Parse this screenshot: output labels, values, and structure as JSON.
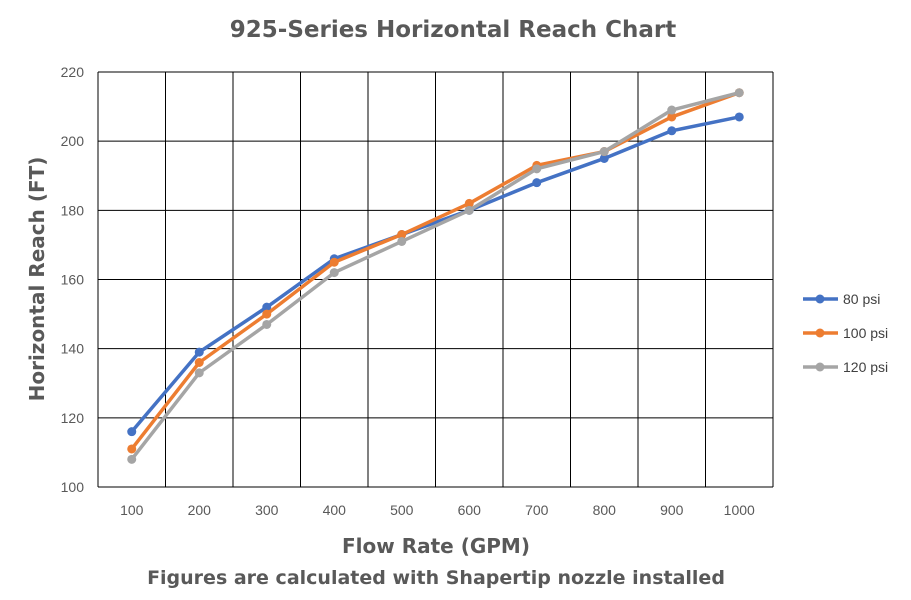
{
  "chart_data": {
    "type": "line",
    "title": "925-Series Horizontal Reach Chart",
    "xlabel": "Flow Rate (GPM)",
    "ylabel": "Horizontal Reach (FT)",
    "caption": "Figures are calculated with Shapertip nozzle installed",
    "categories": [
      "100",
      "200",
      "300",
      "400",
      "500",
      "600",
      "700",
      "800",
      "900",
      "1000"
    ],
    "yticks": [
      "100",
      "120",
      "140",
      "160",
      "180",
      "200",
      "220"
    ],
    "ylim": [
      100,
      220
    ],
    "grid": true,
    "legend_position": "right",
    "series": [
      {
        "name": "80 psi",
        "color": "#4472C4",
        "values": [
          116,
          139,
          152,
          166,
          173,
          180,
          188,
          195,
          203,
          207
        ]
      },
      {
        "name": "100 psi",
        "color": "#ED7D31",
        "values": [
          111,
          136,
          150,
          165,
          173,
          182,
          193,
          197,
          207,
          214
        ]
      },
      {
        "name": "120 psi",
        "color": "#A5A5A5",
        "values": [
          108,
          133,
          147,
          162,
          171,
          180,
          192,
          197,
          209,
          214
        ]
      }
    ]
  }
}
